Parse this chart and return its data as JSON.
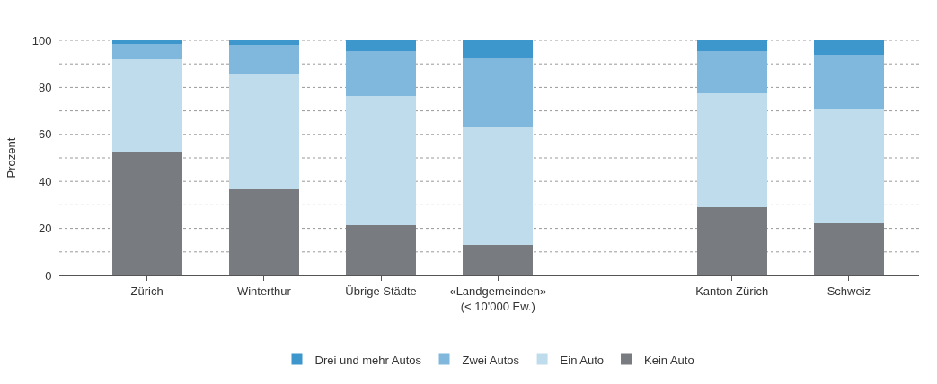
{
  "chart_data": {
    "type": "bar",
    "stacked": true,
    "ylabel": "Prozent",
    "categories": [
      "Zürich",
      "Winterthur",
      "Übrige Städte",
      "«Landgemeinden»\n(< 10'000 Ew.)",
      null,
      "Kanton Zürich",
      "Schweiz"
    ],
    "series": [
      {
        "name": "Kein Auto",
        "color": "#787c80",
        "values": [
          52.5,
          36.5,
          21.5,
          13,
          null,
          29,
          22
        ]
      },
      {
        "name": "Ein Auto",
        "color": "#bfdcec",
        "values": [
          39.5,
          49,
          55,
          50.5,
          null,
          48.5,
          48.5
        ]
      },
      {
        "name": "Zwei Autos",
        "color": "#80b8dd",
        "values": [
          6.5,
          12.5,
          19,
          29,
          null,
          18,
          23.5
        ]
      },
      {
        "name": "Drei und mehr Autos",
        "color": "#3d97cc",
        "values": [
          1.5,
          2,
          4.5,
          7.5,
          null,
          4.5,
          6
        ]
      }
    ],
    "ylim": [
      0,
      100
    ],
    "yticks": [
      0,
      20,
      40,
      60,
      80,
      100
    ],
    "grid": "y",
    "legend": "bottom"
  }
}
